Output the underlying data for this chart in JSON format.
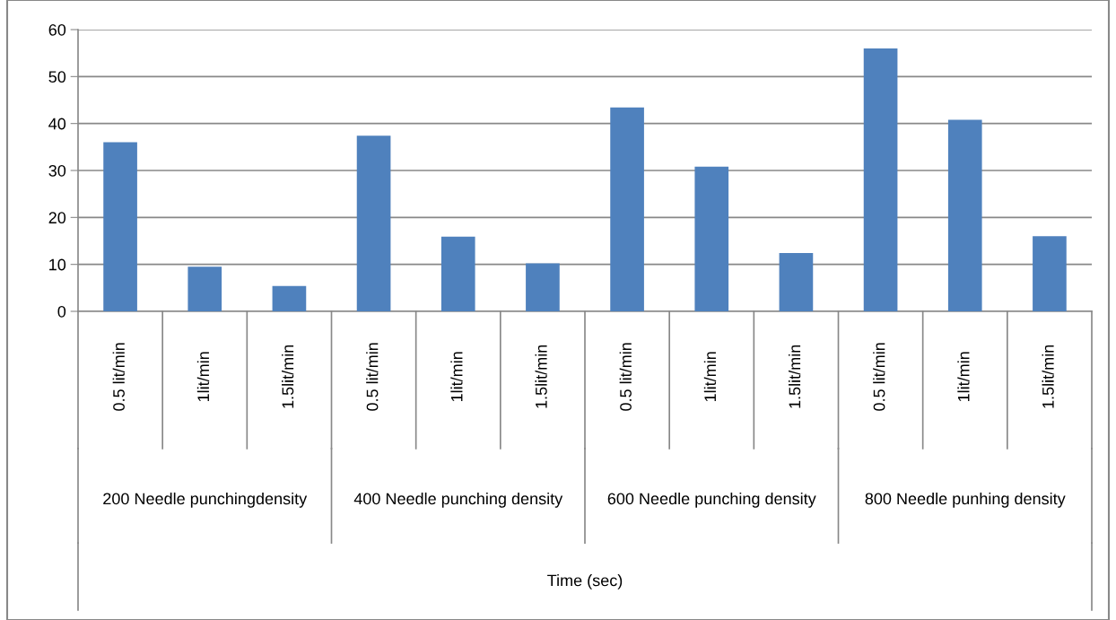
{
  "chart_data": {
    "type": "bar",
    "categories": [
      "0.5 lit/min",
      "1lit/min",
      "1.5lit/min",
      "0.5 lit/min",
      "1lit/min",
      "1.5lit/min",
      "0.5 lit/min",
      "1lit/min",
      "1.5lit/min",
      "0.5 lit/min",
      "1lit/min",
      "1.5lit/min"
    ],
    "values": [
      36,
      9.5,
      5.4,
      37.4,
      15.9,
      10.2,
      43.4,
      30.8,
      12.4,
      56,
      40.8,
      16
    ],
    "color": "#4f81bd",
    "ylim": [
      0,
      60
    ],
    "yticks": [
      0,
      10,
      20,
      30,
      40,
      50,
      60
    ],
    "grid": "y",
    "annotations": [
      "200 Needle punchingdensity",
      "400 Needle punching density",
      "600 Needle punching density",
      "800 Needle punhing density",
      "Time (sec)"
    ]
  }
}
